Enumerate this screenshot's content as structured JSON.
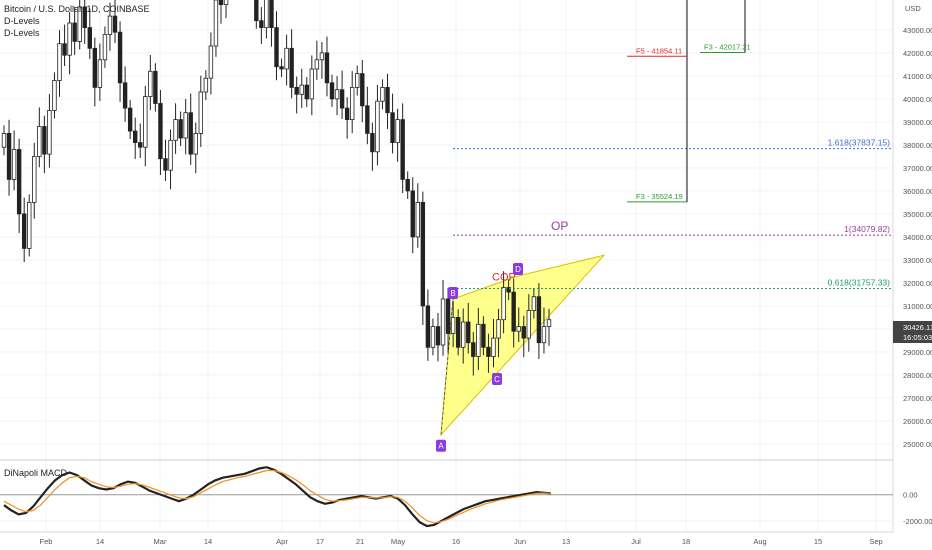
{
  "header": {
    "symbol": "Bitcoin / U.S. Dollar, 1D, COINBASE",
    "indicators": [
      "D-Levels",
      "D-Levels"
    ]
  },
  "macd_panel": {
    "label": "DiNapoli MACD"
  },
  "currency": "USD",
  "price_badge": {
    "value": "30426.13",
    "countdown": "16:05:03",
    "color": "#444444"
  },
  "colors": {
    "up": "#ffffff",
    "down": "#222222",
    "pattern_fill": "#ffff66",
    "pattern_stroke": "#d6c200",
    "fib_1618": "#3a6fd8",
    "op": "#9c3aa3",
    "fib_0618": "#1e9c6b",
    "cop_text": "#e02a2a",
    "f5": "#e02a2a",
    "f3": "#2a9c2a",
    "marker": "#8a3ae0",
    "macd_line": "#222222",
    "signal_line": "#f09020"
  },
  "chart_data": [
    {
      "type": "candlestick",
      "y_axis_ticks": [
        25000,
        26000,
        27000,
        28000,
        29000,
        30000,
        31000,
        32000,
        33000,
        34000,
        35000,
        36000,
        37000,
        38000,
        39000,
        40000,
        41000,
        42000,
        43000
      ],
      "y_axis_tick_labels": [
        "25000.00",
        "26000.00",
        "27000.00",
        "28000.00",
        "29000.00",
        "30000.00",
        "31000.00",
        "32000.00",
        "33000.00",
        "34000.00",
        "35000.00",
        "36000.00",
        "37000.00",
        "38000.00",
        "39000.00",
        "40000.00",
        "41000.00",
        "42000.00",
        "43000.00"
      ],
      "ylim": [
        24300,
        44300
      ],
      "x_axis_labels": [
        "Feb",
        "14",
        "Mar",
        "14",
        "Apr",
        "17",
        "21",
        "May",
        "16",
        "Jun",
        "13",
        "Jul",
        "18",
        "Aug",
        "15",
        "Sep"
      ],
      "levels": [
        {
          "label": "1.618(37837.15)",
          "value": 37837.15,
          "kind": "fib_1618"
        },
        {
          "label": "1(34079.82)",
          "value": 34079.82,
          "kind": "op"
        },
        {
          "label": "0.618(31757.33)",
          "value": 31757.33,
          "kind": "fib_0618"
        }
      ],
      "annotations": {
        "op": "OP",
        "cop": "COP",
        "targets": [
          {
            "label": "F5 - 41854.11",
            "value": 41854.11,
            "kind": "f5"
          },
          {
            "label": "F3 - 42017.21",
            "value": 42017.21,
            "kind": "f3"
          },
          {
            "label": "F3 - 35524.19",
            "value": 35524.19,
            "kind": "f3"
          }
        ],
        "pattern_points": [
          {
            "name": "A",
            "value": 25400
          },
          {
            "name": "B",
            "value": 31300
          },
          {
            "name": "C",
            "value": 28300
          },
          {
            "name": "D",
            "value": 32300
          }
        ]
      }
    },
    {
      "type": "line",
      "title": "DiNapoli MACD",
      "y_axis_ticks": [
        0,
        -2000
      ],
      "y_axis_tick_labels": [
        "0.00",
        "-2000.00"
      ],
      "ylim": [
        -2700,
        2500
      ],
      "series": [
        {
          "key": "macd",
          "values": [
            -800,
            -1200,
            -1500,
            -1400,
            -900,
            -200,
            500,
            1100,
            1500,
            1700,
            1500,
            1100,
            700,
            500,
            400,
            500,
            800,
            1000,
            900,
            600,
            300,
            100,
            -100,
            -300,
            -500,
            -300,
            0,
            400,
            800,
            1100,
            1300,
            1400,
            1500,
            1600,
            1800,
            2000,
            2100,
            1900,
            1600,
            1200,
            800,
            300,
            -200,
            -500,
            -700,
            -600,
            -400,
            -300,
            -200,
            -100,
            -200,
            -300,
            -200,
            -100,
            -300,
            -800,
            -1500,
            -2100,
            -2400,
            -2300,
            -2000,
            -1700,
            -1400,
            -1100,
            -900,
            -700,
            -500,
            -400,
            -300,
            -200,
            -100,
            0,
            100,
            200,
            150,
            100
          ]
        },
        {
          "key": "signal",
          "values": [
            -500,
            -800,
            -1100,
            -1300,
            -1200,
            -800,
            -200,
            400,
            900,
            1300,
            1400,
            1300,
            1000,
            800,
            600,
            550,
            650,
            800,
            850,
            750,
            550,
            350,
            150,
            -50,
            -250,
            -300,
            -150,
            150,
            450,
            750,
            1000,
            1150,
            1300,
            1400,
            1550,
            1700,
            1850,
            1850,
            1700,
            1450,
            1150,
            750,
            300,
            -50,
            -350,
            -500,
            -450,
            -400,
            -300,
            -200,
            -200,
            -250,
            -220,
            -150,
            -200,
            -500,
            -1000,
            -1600,
            -2000,
            -2150,
            -2050,
            -1850,
            -1600,
            -1350,
            -1100,
            -900,
            -700,
            -550,
            -400,
            -300,
            -200,
            -100,
            0,
            100,
            120,
            110
          ]
        }
      ]
    }
  ]
}
